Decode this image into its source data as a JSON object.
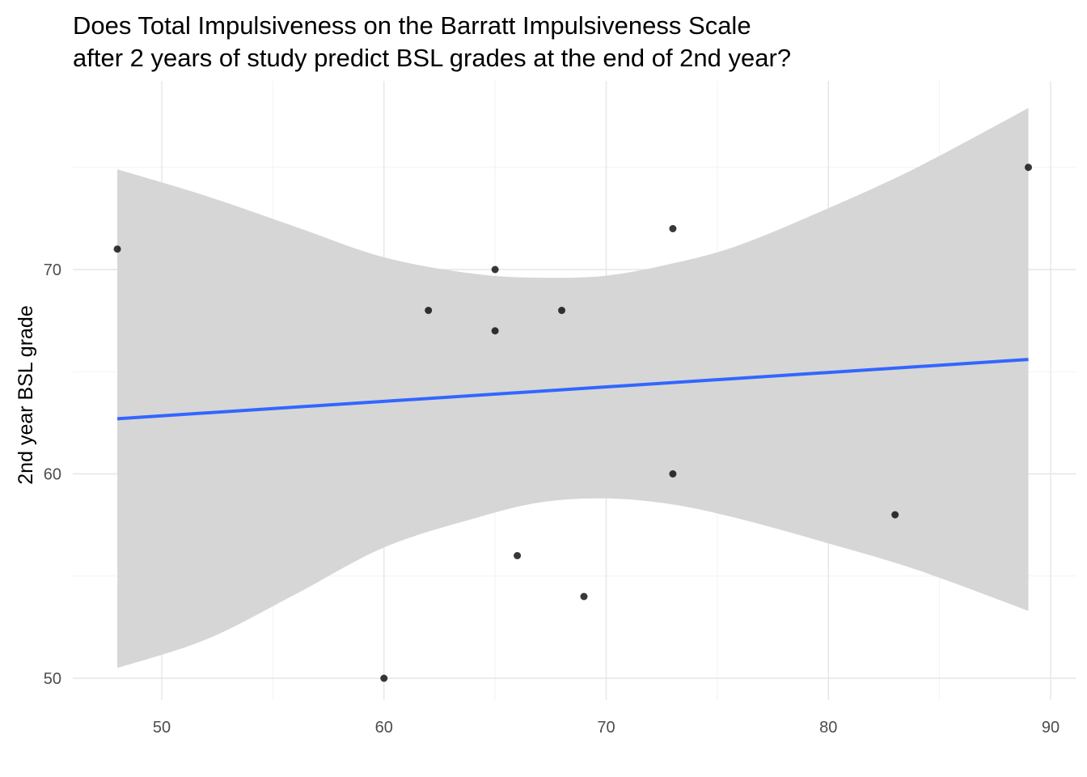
{
  "chart_data": {
    "type": "scatter",
    "title_lines": [
      "Does Total Impulsiveness on the Barratt Impulsiveness Scale",
      "after 2 years of study predict BSL grades at the end of 2nd year?"
    ],
    "xlabel": "",
    "ylabel": "2nd year BSL grade",
    "xlim": [
      46,
      91
    ],
    "ylim": [
      49,
      76
    ],
    "x_ticks": [
      50,
      60,
      70,
      80,
      90
    ],
    "y_ticks": [
      50,
      60,
      70
    ],
    "grid": true,
    "points": [
      {
        "x": 48,
        "y": 71
      },
      {
        "x": 60,
        "y": 50
      },
      {
        "x": 62,
        "y": 68
      },
      {
        "x": 65,
        "y": 70
      },
      {
        "x": 65,
        "y": 67
      },
      {
        "x": 66,
        "y": 56
      },
      {
        "x": 68,
        "y": 68
      },
      {
        "x": 69,
        "y": 54
      },
      {
        "x": 73,
        "y": 72
      },
      {
        "x": 73,
        "y": 60
      },
      {
        "x": 83,
        "y": 58
      },
      {
        "x": 89,
        "y": 75
      }
    ],
    "fit_line": {
      "method": "linear regression",
      "x": [
        48,
        89
      ],
      "y": [
        62.7,
        65.6
      ]
    },
    "confidence_band": {
      "x": [
        48,
        52,
        56,
        60,
        64,
        67,
        70,
        73,
        76,
        80,
        84,
        89
      ],
      "upper": [
        74.9,
        73.6,
        72.1,
        70.6,
        69.8,
        69.6,
        69.7,
        70.3,
        71.2,
        73.0,
        75.0,
        77.9
      ],
      "lower": [
        50.5,
        51.9,
        54.1,
        56.4,
        57.8,
        58.6,
        58.8,
        58.5,
        57.8,
        56.6,
        55.3,
        53.3
      ]
    },
    "colors": {
      "fit_line": "#3366ff",
      "band": "#d6d6d6",
      "points": "#000000",
      "grid_major": "#e6e6e6",
      "grid_minor": "#f2f2f2"
    }
  }
}
